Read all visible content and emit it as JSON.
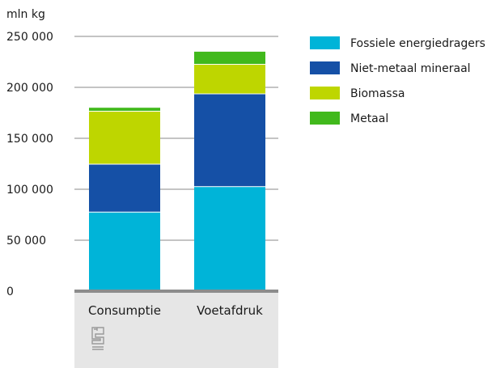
{
  "chart_data": {
    "type": "bar",
    "stacked": true,
    "ylabel": "mln kg",
    "ylim": [
      0,
      250000
    ],
    "yticks": [
      0,
      50000,
      100000,
      150000,
      200000,
      250000
    ],
    "ytick_labels": [
      "0",
      "50 000",
      "100 000",
      "150 000",
      "200 000",
      "250 000"
    ],
    "categories": [
      "Consumptie",
      "Voetafdruk"
    ],
    "series": [
      {
        "name": "Fossiele energiedragers",
        "color": "#00b4d8",
        "values": [
          78000,
          103000
        ]
      },
      {
        "name": "Niet-metaal mineraal",
        "color": "#1550a6",
        "values": [
          47000,
          91000
        ]
      },
      {
        "name": "Biomassa",
        "color": "#bed600",
        "values": [
          52000,
          29000
        ]
      },
      {
        "name": "Metaal",
        "color": "#41b91c",
        "values": [
          3000,
          12000
        ]
      }
    ],
    "legend_position": "right",
    "grid": true
  },
  "logo": {
    "name": "cbs-logo-icon",
    "text": "cbs"
  }
}
